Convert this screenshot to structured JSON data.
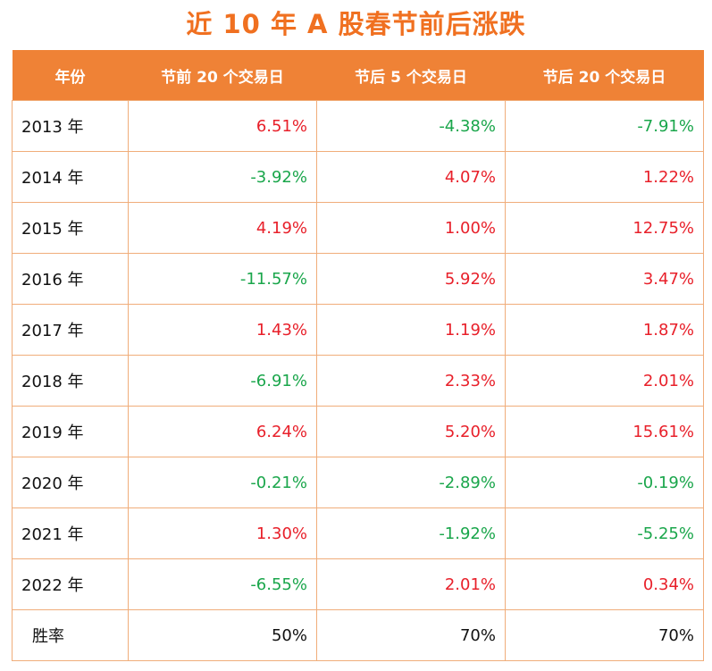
{
  "title": "近 10 年 A 股春节前后涨跌",
  "colors": {
    "title": "#f07020",
    "header_bg": "#ef8236",
    "header_text": "#ffffff",
    "border": "#f0ad7a",
    "up": "#e8202a",
    "down": "#1aa64b"
  },
  "chart_data": {
    "type": "table",
    "title": "近 10 年 A 股春节前后涨跌",
    "columns": [
      "年份",
      "节前 20 个交易日",
      "节后 5 个交易日",
      "节后 20 个交易日"
    ],
    "rows": [
      {
        "year": "2013 年",
        "c1": "6.51%",
        "c2": "-4.38%",
        "c3": "-7.91%"
      },
      {
        "year": "2014 年",
        "c1": "-3.92%",
        "c2": "4.07%",
        "c3": "1.22%"
      },
      {
        "year": "2015 年",
        "c1": "4.19%",
        "c2": "1.00%",
        "c3": "12.75%"
      },
      {
        "year": "2016 年",
        "c1": "-11.57%",
        "c2": "5.92%",
        "c3": "3.47%"
      },
      {
        "year": "2017 年",
        "c1": "1.43%",
        "c2": "1.19%",
        "c3": "1.87%"
      },
      {
        "year": "2018 年",
        "c1": "-6.91%",
        "c2": "2.33%",
        "c3": "2.01%"
      },
      {
        "year": "2019 年",
        "c1": "6.24%",
        "c2": "5.20%",
        "c3": "15.61%"
      },
      {
        "year": "2020 年",
        "c1": "-0.21%",
        "c2": "-2.89%",
        "c3": "-0.19%"
      },
      {
        "year": "2021 年",
        "c1": "1.30%",
        "c2": "-1.92%",
        "c3": "-5.25%"
      },
      {
        "year": "2022 年",
        "c1": "-6.55%",
        "c2": "2.01%",
        "c3": "0.34%"
      }
    ],
    "win_rate": {
      "label": "胜率",
      "c1": "50%",
      "c2": "70%",
      "c3": "70%"
    }
  }
}
